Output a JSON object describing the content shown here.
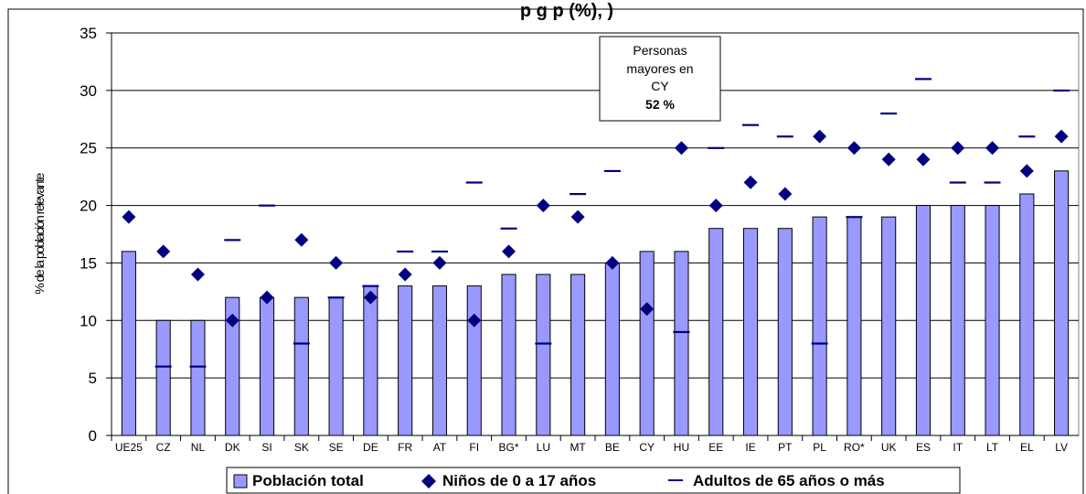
{
  "chart_data": {
    "type": "bar",
    "title": "p                                   g   p                    (%),                   )",
    "ylabel": "% de la población relevante",
    "xlabel": "",
    "ylim": [
      0,
      35
    ],
    "yticks": [
      0,
      5,
      10,
      15,
      20,
      25,
      30,
      35
    ],
    "grid": true,
    "legend_position": "bottom",
    "categories": [
      "UE25",
      "CZ",
      "NL",
      "DK",
      "SI",
      "SK",
      "SE",
      "DE",
      "FR",
      "AT",
      "FI",
      "BG*",
      "LU",
      "MT",
      "BE",
      "CY",
      "HU",
      "EE",
      "IE",
      "PT",
      "PL",
      "RO*",
      "UK",
      "ES",
      "IT",
      "LT",
      "EL",
      "LV"
    ],
    "series": [
      {
        "name": "Población total",
        "kind": "bar",
        "color": "#9999ff",
        "values": [
          16,
          10,
          10,
          12,
          12,
          12,
          12,
          13,
          13,
          13,
          13,
          14,
          14,
          14,
          15,
          16,
          16,
          18,
          18,
          18,
          19,
          19,
          19,
          20,
          20,
          20,
          21,
          23
        ]
      },
      {
        "name": "Niños de 0 a 17 años",
        "kind": "diamond",
        "color": "#000080",
        "values": [
          19,
          16,
          14,
          10,
          12,
          17,
          15,
          12,
          14,
          15,
          10,
          16,
          20,
          19,
          15,
          11,
          25,
          20,
          22,
          21,
          26,
          25,
          24,
          24,
          25,
          25,
          23,
          26
        ]
      },
      {
        "name": "Adultos de 65 años o más",
        "kind": "dash",
        "color": "#000080",
        "values": [
          null,
          6,
          6,
          17,
          20,
          8,
          12,
          13,
          16,
          16,
          22,
          18,
          8,
          21,
          23,
          null,
          9,
          25,
          27,
          26,
          8,
          19,
          28,
          31,
          22,
          22,
          26,
          30
        ]
      }
    ],
    "annotation": {
      "line1": "Personas",
      "line2": "mayores en",
      "line3": "CY",
      "line4": "52 %"
    }
  }
}
